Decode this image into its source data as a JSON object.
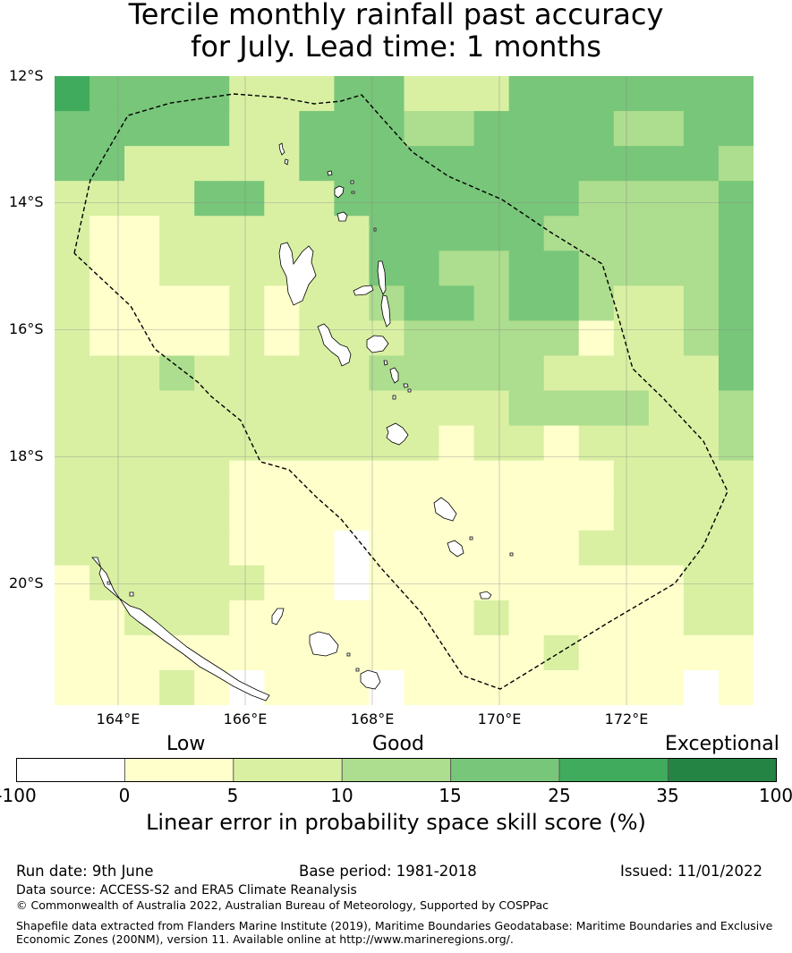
{
  "title": {
    "line1": "Tercile monthly rainfall past accuracy",
    "line2": "for July. Lead time: 1 months"
  },
  "map": {
    "lat_labels": [
      "12°S",
      "14°S",
      "16°S",
      "18°S",
      "20°S"
    ],
    "lon_labels": [
      "164°E",
      "166°E",
      "168°E",
      "170°E",
      "172°E"
    ],
    "boundary_style": "dashed",
    "grid": true
  },
  "colorbar": {
    "category_labels": {
      "low": "Low",
      "good": "Good",
      "exceptional": "Exceptional"
    },
    "ticks": [
      "-100",
      "0",
      "5",
      "10",
      "15",
      "25",
      "35",
      "100"
    ],
    "colors": [
      "#ffffff",
      "#ffffcc",
      "#d9f0a3",
      "#addd8e",
      "#78c679",
      "#41ab5d",
      "#238443"
    ],
    "label": "Linear error in probability space skill score (%)"
  },
  "footer": {
    "run_date": "Run date: 9th June",
    "base_period": "Base period: 1981-2018",
    "issued": "Issued: 11/01/2022",
    "data_source": "Data source: ACCESS-S2 and ERA5 Climate Reanalysis",
    "copyright": "© Commonwealth of Australia 2022, Australian Bureau of Meteorology, Supported by COSPPac",
    "shapefile_line1": "Shapefile data extracted from Flanders Marine Institute (2019), Maritime Boundaries Geodatabase: Maritime Boundaries and Exclusive",
    "shapefile_line2": "Economic Zones (200NM), version 11. Available online at http://www.marineregions.org/."
  }
}
